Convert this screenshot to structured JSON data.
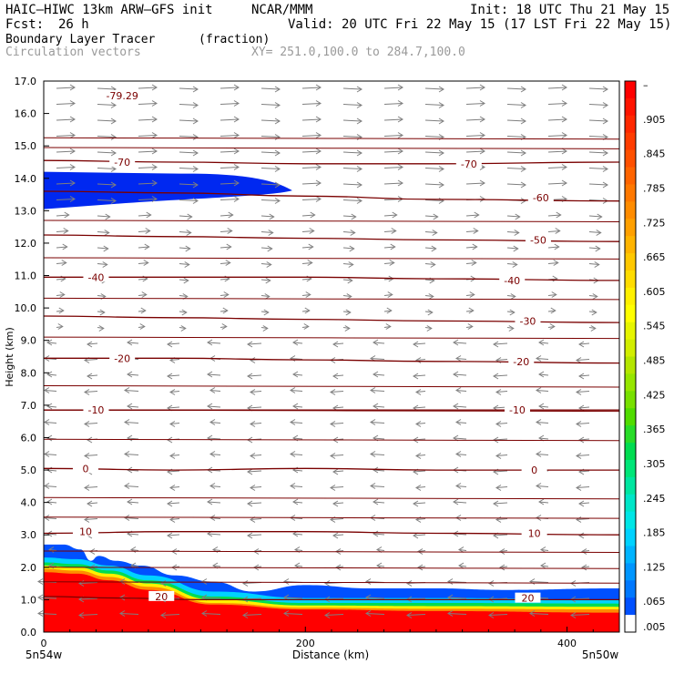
{
  "header": {
    "model": "HAIC–HIWC 13km ARW–GFS init",
    "org": "NCAR/MMM",
    "init": "Init: 18 UTC Thu 21 May 15",
    "fcst_label": "Fcst:",
    "fcst_value": "26 h",
    "valid": "Valid: 20 UTC Fri 22 May 15 (17 LST Fri 22 May 15)",
    "field1": "Boundary Layer Tracer",
    "field1_units": "(fraction)",
    "field2": "Circulation vectors",
    "xsec": "XY= 251.0,100.0 to 284.7,100.0"
  },
  "colors": {
    "contour": "#7a0000",
    "vector": "#7f7f7f",
    "tracer_ramp": [
      "#ffffff",
      "#0028f0",
      "#0050ff",
      "#0078ff",
      "#00a0ff",
      "#00c8ff",
      "#00e6e6",
      "#00e6a0",
      "#00dc50",
      "#3cdc00",
      "#96e600",
      "#d2ee00",
      "#fff000",
      "#ffc800",
      "#ffa000",
      "#ff7800",
      "#ff5000",
      "#ff2800",
      "#ff0000"
    ]
  },
  "chart_data": {
    "type": "cross-section",
    "ylabel": "Height (km)",
    "xlabel": "Distance (km)",
    "xlim": [
      0,
      440
    ],
    "ylim": [
      0,
      17
    ],
    "yticks": [
      "0.0",
      "1.0",
      "2.0",
      "3.0",
      "4.0",
      "5.0",
      "6.0",
      "7.0",
      "8.0",
      "9.0",
      "10.0",
      "11.0",
      "12.0",
      "13.0",
      "14.0",
      "15.0",
      "16.0",
      "17.0"
    ],
    "xticks": [
      {
        "x": 0,
        "label": "0"
      },
      {
        "x": 200,
        "label": "200"
      },
      {
        "x": 400,
        "label": "400"
      }
    ],
    "x_endpoints": {
      "left": "5n54w",
      "right": "5n50w"
    },
    "colorbar": {
      "labels": [
        "–",
        ".905",
        ".845",
        ".785",
        ".725",
        ".665",
        ".605",
        ".545",
        ".485",
        ".425",
        ".365",
        ".305",
        ".245",
        ".185",
        ".125",
        ".065",
        ".005"
      ],
      "colors": [
        "#ff0000",
        "#ff1400",
        "#ff2800",
        "#ff3c00",
        "#ff5000",
        "#ff6400",
        "#ff7800",
        "#ff8c00",
        "#ffa000",
        "#ffb400",
        "#ffc800",
        "#ffdc00",
        "#fff000",
        "#ffff00",
        "#e6f500",
        "#d2ee00",
        "#b4e600",
        "#96e600",
        "#78e000",
        "#50dc00",
        "#28dc28",
        "#00dc50",
        "#00e678",
        "#00e6a0",
        "#00e6c8",
        "#00e6e6",
        "#00d2ff",
        "#00b4ff",
        "#0096ff",
        "#0078ff",
        "#0050ff",
        "#ffffff"
      ]
    },
    "temperature_contours": [
      {
        "value": -79.29,
        "label": "-79.29",
        "points": [
          [
            60,
            16.55
          ]
        ]
      },
      {
        "value": -70,
        "label": "-70",
        "points": [
          [
            0,
            14.55
          ],
          [
            100,
            14.5
          ],
          [
            200,
            14.45
          ],
          [
            300,
            14.45
          ],
          [
            440,
            14.5
          ]
        ],
        "labels": [
          [
            60,
            14.5
          ],
          [
            325,
            14.45
          ]
        ]
      },
      {
        "value": -60,
        "label": "-60",
        "points": [
          [
            0,
            13.6
          ],
          [
            100,
            13.55
          ],
          [
            200,
            13.45
          ],
          [
            300,
            13.35
          ],
          [
            440,
            13.3
          ]
        ],
        "labels": [
          [
            380,
            13.4
          ]
        ]
      },
      {
        "value": -50,
        "label": "-50",
        "points": [
          [
            0,
            12.25
          ],
          [
            100,
            12.2
          ],
          [
            200,
            12.15
          ],
          [
            300,
            12.1
          ],
          [
            440,
            12.05
          ]
        ],
        "labels": [
          [
            378,
            12.1
          ]
        ]
      },
      {
        "value": -40,
        "label": "-40",
        "points": [
          [
            0,
            10.95
          ],
          [
            100,
            10.95
          ],
          [
            200,
            10.95
          ],
          [
            300,
            10.9
          ],
          [
            440,
            10.85
          ]
        ],
        "labels": [
          [
            40,
            10.95
          ],
          [
            358,
            10.85
          ]
        ]
      },
      {
        "value": -30,
        "label": "-30",
        "points": [
          [
            0,
            9.75
          ],
          [
            100,
            9.7
          ],
          [
            200,
            9.65
          ],
          [
            300,
            9.6
          ],
          [
            440,
            9.55
          ]
        ],
        "labels": [
          [
            370,
            9.6
          ]
        ]
      },
      {
        "value": -20,
        "label": "-20",
        "points": [
          [
            0,
            8.45
          ],
          [
            100,
            8.45
          ],
          [
            200,
            8.4
          ],
          [
            300,
            8.35
          ],
          [
            440,
            8.3
          ]
        ],
        "labels": [
          [
            60,
            8.45
          ],
          [
            365,
            8.35
          ]
        ]
      },
      {
        "value": -10,
        "label": "-10",
        "points": [
          [
            0,
            6.85
          ],
          [
            100,
            6.85
          ],
          [
            200,
            6.85
          ],
          [
            300,
            6.85
          ],
          [
            440,
            6.85
          ]
        ],
        "labels": [
          [
            40,
            6.85
          ],
          [
            362,
            6.85
          ]
        ]
      },
      {
        "value": 0,
        "label": "0",
        "points": [
          [
            0,
            5.05
          ],
          [
            100,
            5.0
          ],
          [
            200,
            5.05
          ],
          [
            300,
            5.0
          ],
          [
            440,
            5.0
          ]
        ],
        "labels": [
          [
            32,
            5.05
          ],
          [
            375,
            5.0
          ]
        ]
      },
      {
        "value": 10,
        "label": "10",
        "points": [
          [
            0,
            3.05
          ],
          [
            100,
            3.1
          ],
          [
            200,
            3.1
          ],
          [
            300,
            3.05
          ],
          [
            440,
            3.0
          ]
        ],
        "labels": [
          [
            32,
            3.1
          ],
          [
            375,
            3.05
          ]
        ]
      },
      {
        "value": 20,
        "label": "20",
        "points": [
          [
            0,
            1.1
          ],
          [
            60,
            1.05
          ],
          [
            120,
            1.0
          ],
          [
            200,
            1.0
          ],
          [
            300,
            1.0
          ],
          [
            440,
            1.0
          ]
        ],
        "labels": [
          [
            90,
            1.1
          ],
          [
            370,
            1.05
          ]
        ]
      }
    ],
    "extra_contour_lines": [
      15.25,
      14.95,
      12.7,
      11.55,
      10.3,
      9.1,
      7.6,
      6.85,
      5.95,
      4.15,
      3.55,
      2.5,
      2.0,
      1.55
    ],
    "tracer_layers": [
      {
        "color": "#ff0000",
        "top": [
          [
            0,
            1.85
          ],
          [
            25,
            1.8
          ],
          [
            50,
            1.6
          ],
          [
            80,
            1.3
          ],
          [
            130,
            0.85
          ],
          [
            200,
            0.7
          ],
          [
            300,
            0.65
          ],
          [
            440,
            0.6
          ]
        ]
      },
      {
        "color": "#ff8c00",
        "top": [
          [
            0,
            1.95
          ],
          [
            25,
            1.9
          ],
          [
            50,
            1.7
          ],
          [
            80,
            1.4
          ],
          [
            130,
            0.9
          ],
          [
            200,
            0.75
          ],
          [
            300,
            0.72
          ],
          [
            440,
            0.7
          ]
        ]
      },
      {
        "color": "#fff000",
        "top": [
          [
            0,
            2.05
          ],
          [
            25,
            2.0
          ],
          [
            50,
            1.8
          ],
          [
            80,
            1.5
          ],
          [
            130,
            1.0
          ],
          [
            200,
            0.82
          ],
          [
            300,
            0.8
          ],
          [
            440,
            0.78
          ]
        ]
      },
      {
        "color": "#00dc50",
        "top": [
          [
            0,
            2.15
          ],
          [
            25,
            2.1
          ],
          [
            50,
            1.9
          ],
          [
            80,
            1.6
          ],
          [
            130,
            1.1
          ],
          [
            200,
            0.9
          ],
          [
            300,
            0.9
          ],
          [
            440,
            0.88
          ]
        ]
      },
      {
        "color": "#00d2ff",
        "top": [
          [
            0,
            2.3
          ],
          [
            25,
            2.25
          ],
          [
            50,
            2.05
          ],
          [
            80,
            1.75
          ],
          [
            130,
            1.25
          ],
          [
            200,
            1.05
          ],
          [
            300,
            1.05
          ],
          [
            440,
            1.0
          ]
        ]
      },
      {
        "color": "#0050ff",
        "top": [
          [
            0,
            2.7
          ],
          [
            15,
            2.7
          ],
          [
            28,
            2.55
          ],
          [
            36,
            2.2
          ],
          [
            42,
            2.35
          ],
          [
            55,
            2.2
          ],
          [
            75,
            2.05
          ],
          [
            100,
            1.75
          ],
          [
            130,
            1.55
          ],
          [
            160,
            1.25
          ],
          [
            200,
            1.45
          ],
          [
            250,
            1.35
          ],
          [
            300,
            1.35
          ],
          [
            350,
            1.3
          ],
          [
            440,
            1.35
          ]
        ]
      }
    ],
    "upper_tracer": {
      "color": "#0028f0",
      "x_range": [
        0,
        190
      ],
      "top": 14.2,
      "bottom": 13.05
    }
  }
}
